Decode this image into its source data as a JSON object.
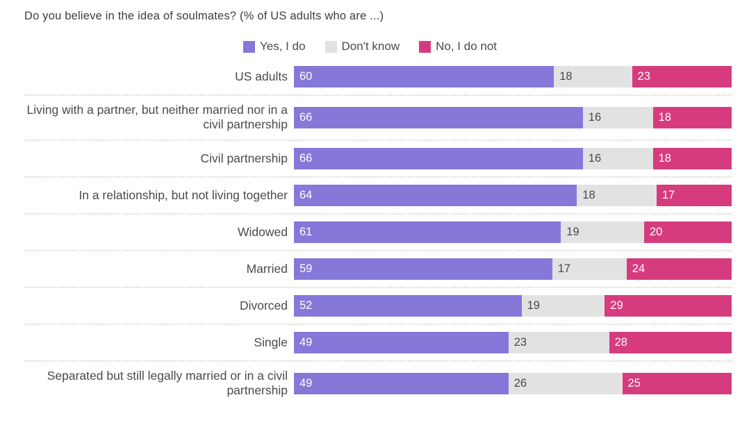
{
  "title": "Do you believe in the idea of soulmates? (% of US adults who are ...)",
  "legend": [
    {
      "label": "Yes, I do",
      "color": "#8678d9",
      "key": "yes"
    },
    {
      "label": "Don't know",
      "color": "#e2e2e2",
      "key": "dont-know"
    },
    {
      "label": "No, I do not",
      "color": "#d63c7d",
      "key": "no"
    }
  ],
  "chart_data": {
    "type": "bar",
    "orientation": "horizontal",
    "stacked": true,
    "normalized_to_100": true,
    "title": "Do you believe in the idea of soulmates? (% of US adults who are ...)",
    "legend_position": "top-center",
    "grid": false,
    "categories": [
      "US adults",
      "Living with a partner, but neither married nor in a civil partnership",
      "Civil partnership",
      "In a relationship, but not living together",
      "Widowed",
      "Married",
      "Divorced",
      "Single",
      "Separated but still legally married or in a civil partnership"
    ],
    "series": [
      {
        "name": "Yes, I do",
        "key": "yes",
        "color": "#8678d9",
        "values": [
          60,
          66,
          66,
          64,
          61,
          59,
          52,
          49,
          49
        ]
      },
      {
        "name": "Don't know",
        "key": "dont-know",
        "color": "#e2e2e2",
        "values": [
          18,
          16,
          16,
          18,
          19,
          17,
          19,
          23,
          26
        ]
      },
      {
        "name": "No, I do not",
        "key": "no",
        "color": "#d63c7d",
        "values": [
          23,
          18,
          18,
          17,
          20,
          24,
          29,
          28,
          25
        ]
      }
    ]
  }
}
